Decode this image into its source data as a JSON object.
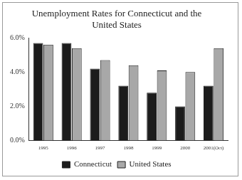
{
  "chart_data": {
    "type": "bar",
    "title": "Unemployment Rates for Connecticut and the United States",
    "categories": [
      "1995",
      "1996",
      "1997",
      "1998",
      "1999",
      "2000",
      "2001(Oct)"
    ],
    "series": [
      {
        "name": "Connecticut",
        "color": "#1c1c1c",
        "values": [
          5.7,
          5.7,
          4.2,
          3.2,
          2.8,
          2.0,
          3.2
        ]
      },
      {
        "name": "United States",
        "color": "#a8a8a8",
        "values": [
          5.6,
          5.4,
          4.7,
          4.4,
          4.1,
          4.0,
          5.4
        ]
      }
    ],
    "ylim": [
      0,
      6
    ],
    "yticks": [
      {
        "value": 0,
        "label": "0.0%"
      },
      {
        "value": 2,
        "label": "2.0%"
      },
      {
        "value": 4,
        "label": "4.0%"
      },
      {
        "value": 6,
        "label": "6.0%"
      }
    ],
    "grid": false,
    "legend": "bottom"
  }
}
